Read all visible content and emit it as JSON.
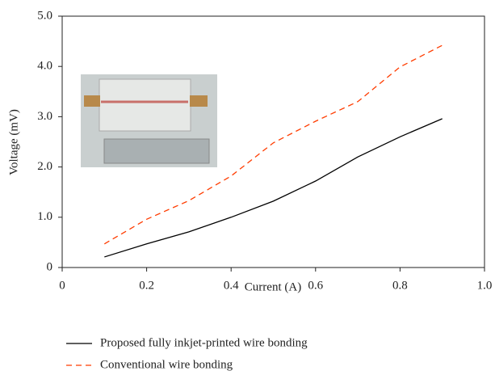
{
  "chart_data": {
    "type": "line",
    "x": [
      0.1,
      0.2,
      0.3,
      0.4,
      0.5,
      0.6,
      0.7,
      0.8,
      0.9
    ],
    "series": [
      {
        "name": "Proposed fully inkjet-printed wire bonding",
        "color": "#000000",
        "linestyle": "solid",
        "values": [
          0.21,
          0.47,
          0.71,
          1.0,
          1.32,
          1.72,
          2.2,
          2.6,
          2.96
        ]
      },
      {
        "name": "Conventional wire bonding",
        "color": "#ff3c00",
        "linestyle": "dashed",
        "values": [
          0.47,
          0.96,
          1.33,
          1.82,
          2.48,
          2.91,
          3.3,
          3.99,
          4.42
        ]
      }
    ],
    "x_label": "Current (A)",
    "y_label": "Voltage (mV)",
    "xlim": [
      0,
      1
    ],
    "ylim": [
      0,
      5
    ],
    "xticks": [
      0,
      0.2,
      0.4,
      0.6,
      0.8,
      {
        "value": 1,
        "label": "1.0"
      }
    ],
    "yticks": [
      0,
      {
        "value": 1,
        "label": "1.0"
      },
      {
        "value": 2,
        "label": "2.0"
      },
      {
        "value": 3,
        "label": "3.0"
      },
      {
        "value": 4,
        "label": "4.0"
      },
      {
        "value": 5,
        "label": "5.0"
      }
    ],
    "legend": "bottom"
  }
}
